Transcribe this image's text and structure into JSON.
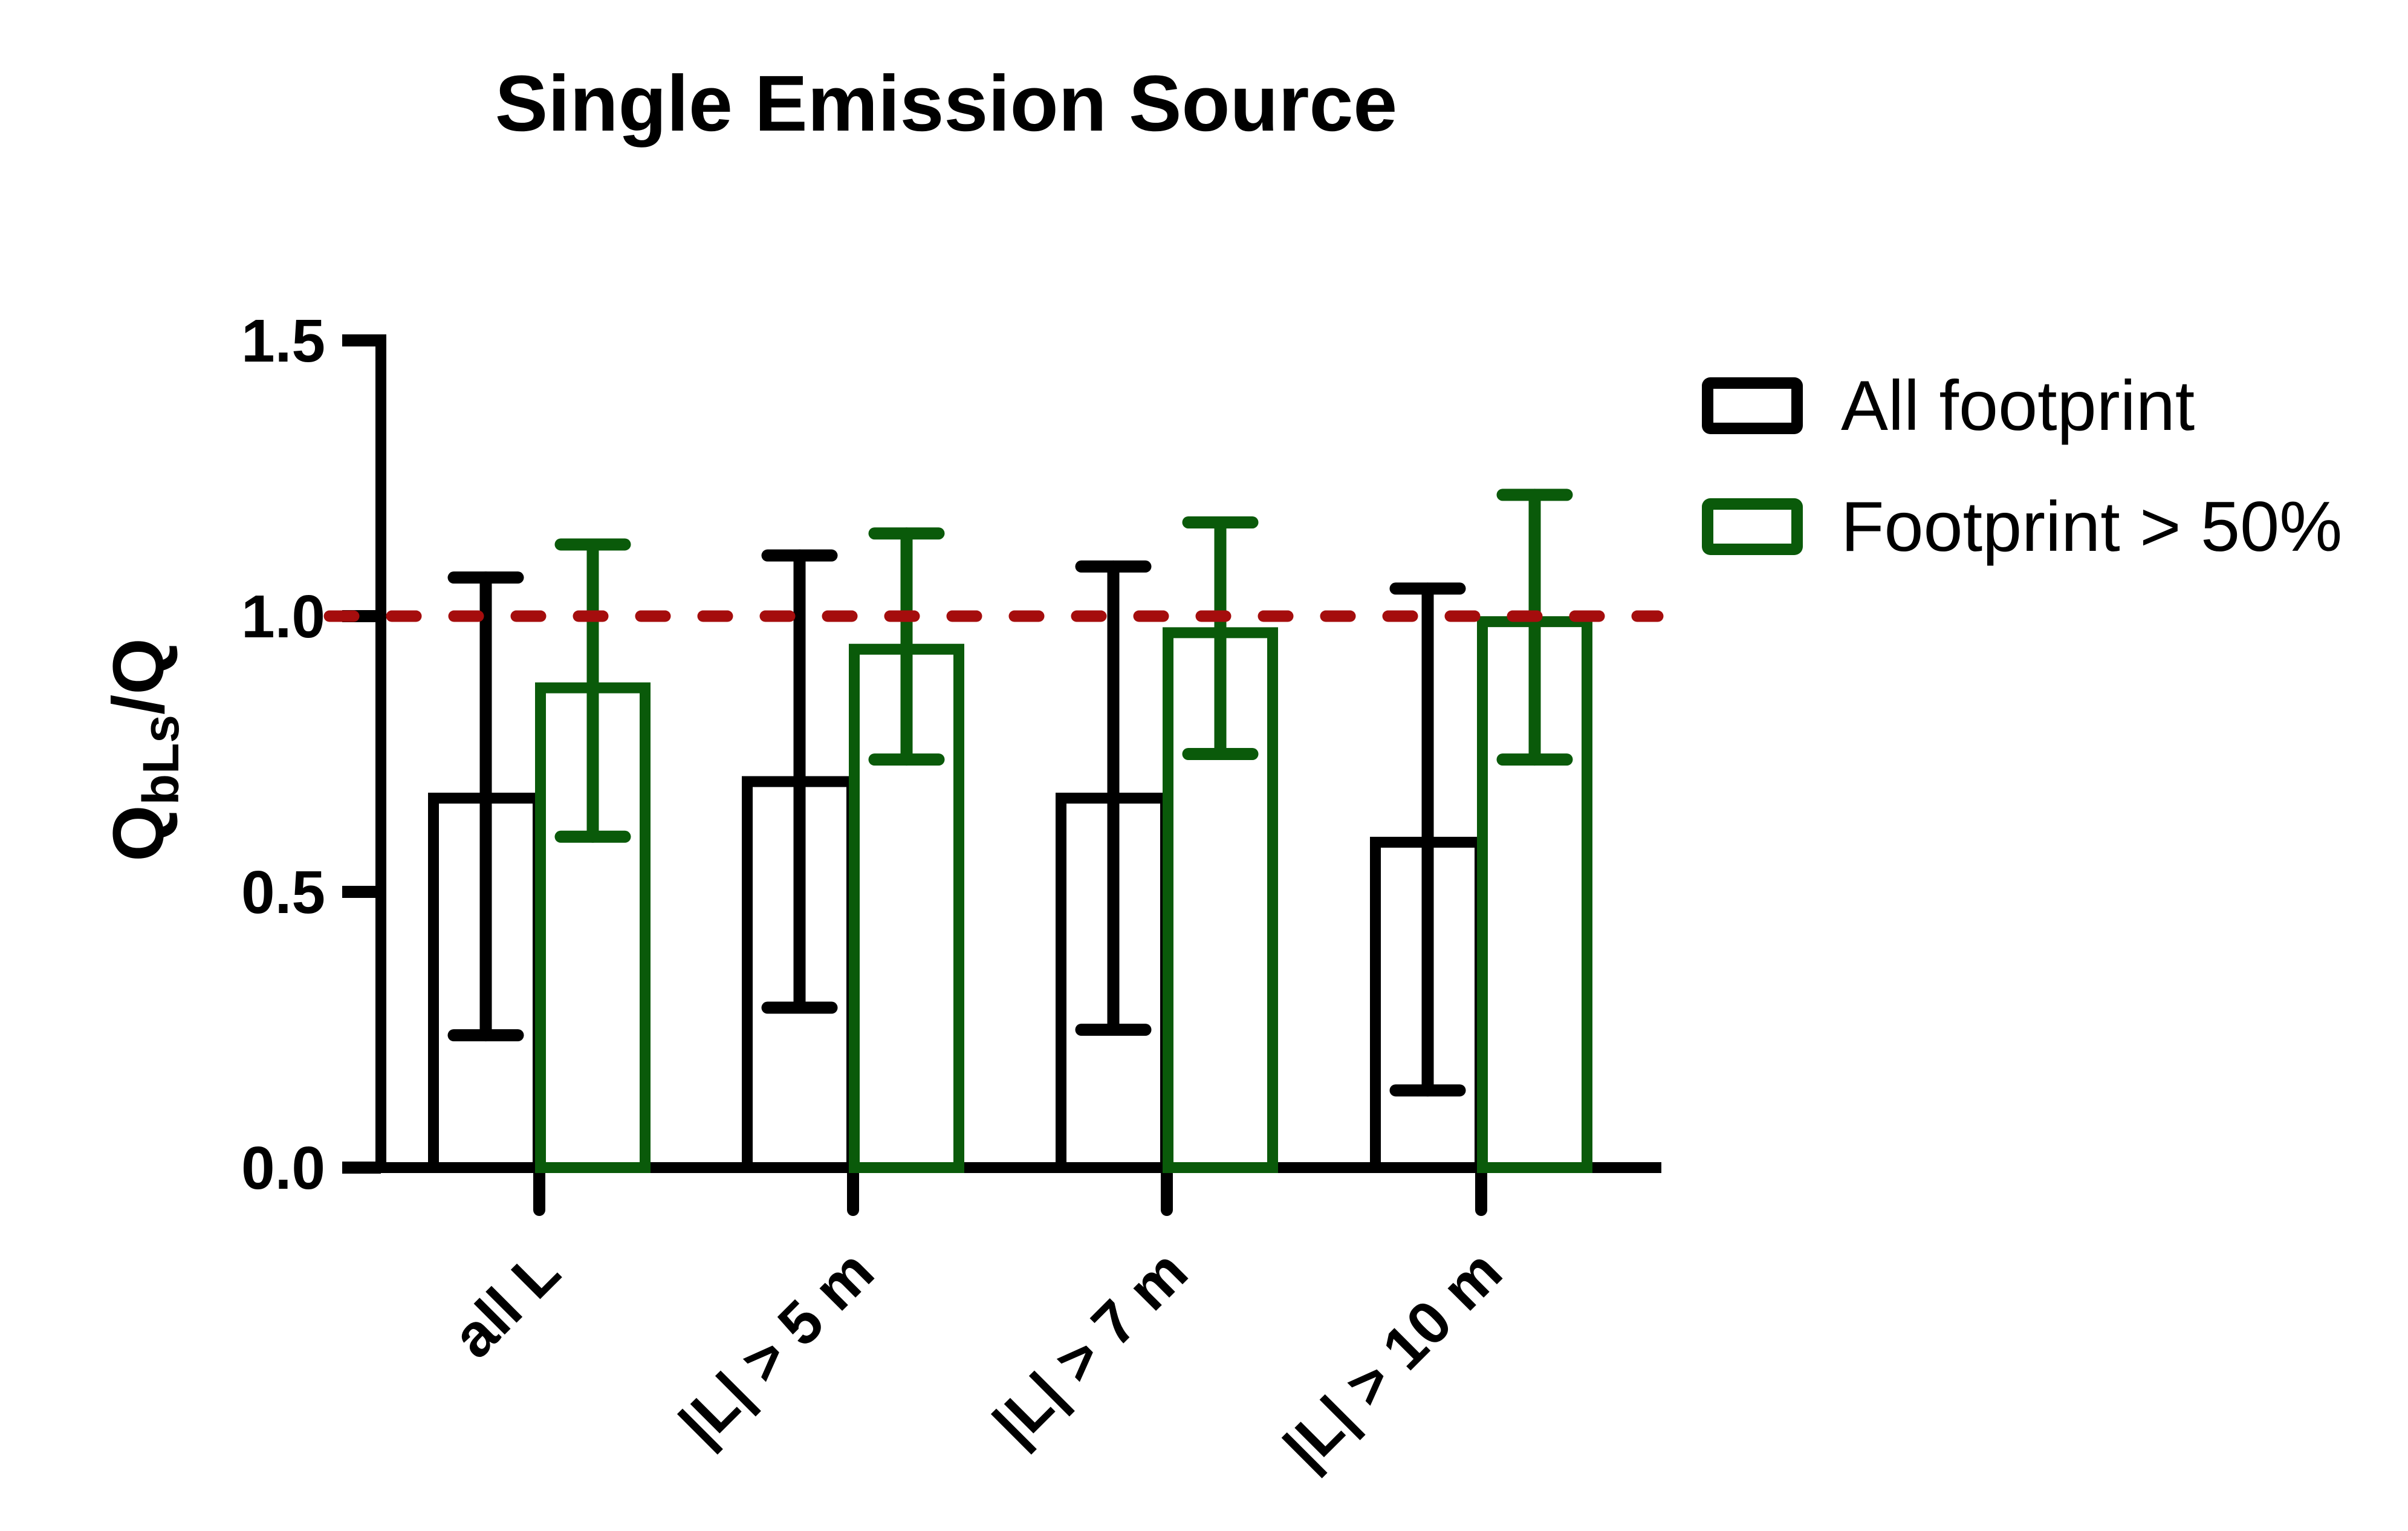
{
  "title": "Single Emission Source",
  "legend": {
    "items": [
      {
        "label": "All footprint",
        "color": "#000000"
      },
      {
        "label": "Footprint > 50%",
        "color": "#0a5a0a"
      }
    ]
  },
  "y_axis": {
    "label_q": "Q",
    "label_sub": "bLs",
    "label_rest": "/Q",
    "ticks": [
      {
        "label": "0.0",
        "value": 0.0
      },
      {
        "label": "0.5",
        "value": 0.5
      },
      {
        "label": "1.0",
        "value": 1.0
      },
      {
        "label": "1.5",
        "value": 1.5
      }
    ]
  },
  "reference_line": {
    "value": 1.0,
    "color": "#a50d0d",
    "style": "dashed"
  },
  "chart_data": {
    "type": "bar",
    "title": "Single Emission Source",
    "ylabel": "Q_bLs/Q",
    "xlabel": "",
    "ylim": [
      0,
      1.5
    ],
    "grid": false,
    "legend_position": "upper-right",
    "bar_fill": "open",
    "categories": [
      "all L",
      "|L| > 5 m",
      "|L| > 7 m",
      "|L| > 10 m"
    ],
    "series": [
      {
        "name": "All footprint",
        "color": "#000000",
        "values": [
          0.67,
          0.7,
          0.67,
          0.59
        ],
        "error_low": [
          0.24,
          0.29,
          0.25,
          0.14
        ],
        "error_high": [
          1.07,
          1.11,
          1.09,
          1.05
        ]
      },
      {
        "name": "Footprint > 50%",
        "color": "#0a5a0a",
        "values": [
          0.87,
          0.94,
          0.97,
          0.99
        ],
        "error_low": [
          0.6,
          0.74,
          0.75,
          0.74
        ],
        "error_high": [
          1.13,
          1.15,
          1.17,
          1.22
        ]
      }
    ],
    "reference_line_y": 1.0
  }
}
